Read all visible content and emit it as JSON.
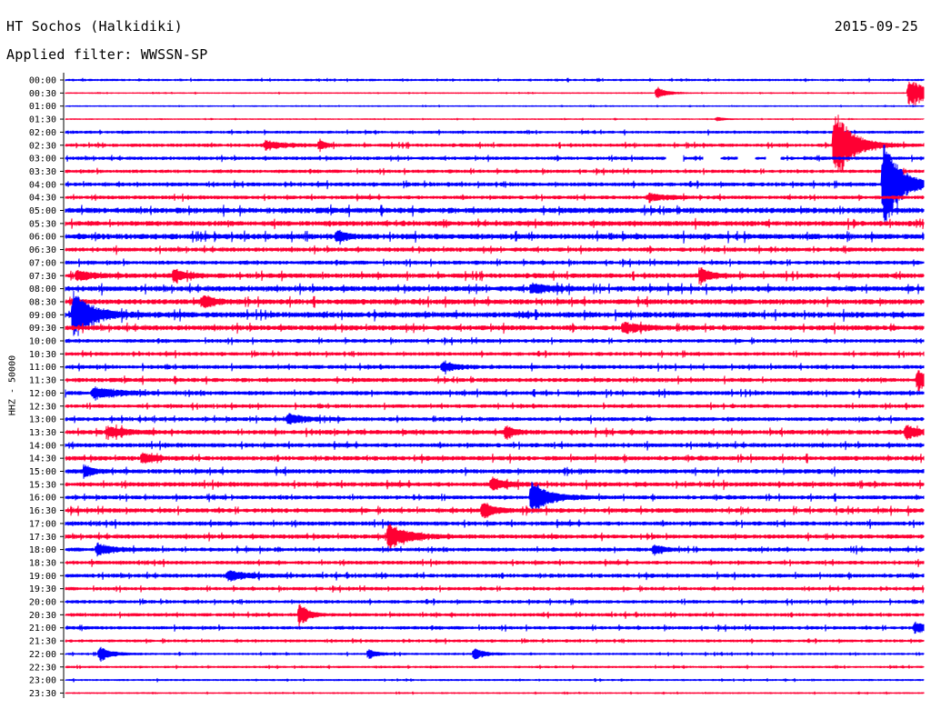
{
  "header": {
    "station": "HT Sochos (Halkidiki)",
    "date": "2015-09-25",
    "filter": "Applied filter: WWSSN-SP"
  },
  "chart_data": {
    "type": "line",
    "title": "HT Sochos (Halkidiki)",
    "ylabel": "HHZ - 50000",
    "row_labels": [
      "00:00",
      "00:30",
      "01:00",
      "01:30",
      "02:00",
      "02:30",
      "03:00",
      "03:30",
      "04:00",
      "04:30",
      "05:00",
      "05:30",
      "06:00",
      "06:30",
      "07:00",
      "07:30",
      "08:00",
      "08:30",
      "09:00",
      "09:30",
      "10:00",
      "10:30",
      "11:00",
      "11:30",
      "12:00",
      "12:30",
      "13:00",
      "13:30",
      "14:00",
      "14:30",
      "15:00",
      "15:30",
      "16:00",
      "16:30",
      "17:00",
      "17:30",
      "18:00",
      "18:30",
      "19:00",
      "19:30",
      "20:00",
      "20:30",
      "21:00",
      "21:30",
      "22:00",
      "22:30",
      "23:00",
      "23:30"
    ],
    "x_range_minutes": [
      0,
      30
    ],
    "colors": [
      "#0000ff",
      "#ff0033"
    ],
    "noise_level": [
      0.6,
      0.3,
      0.3,
      0.3,
      0.8,
      1.0,
      1.0,
      1.0,
      1.2,
      1.1,
      1.8,
      1.6,
      1.8,
      1.3,
      1.2,
      1.5,
      1.7,
      1.7,
      1.8,
      1.6,
      1.1,
      1.1,
      1.2,
      1.3,
      1.3,
      1.1,
      1.2,
      1.4,
      1.3,
      1.4,
      1.4,
      1.4,
      1.2,
      1.4,
      1.3,
      1.3,
      1.2,
      1.1,
      1.2,
      1.0,
      1.0,
      1.0,
      1.0,
      0.8,
      0.6,
      0.6,
      0.5,
      0.4
    ],
    "events": [
      {
        "row": 1,
        "time_min": 20.7,
        "amp": 7,
        "dur_min": 0.6
      },
      {
        "row": 1,
        "time_min": 29.5,
        "amp": 15,
        "dur_min": 1.5
      },
      {
        "row": 3,
        "time_min": 22.8,
        "amp": 2,
        "dur_min": 0.5
      },
      {
        "row": 5,
        "time_min": 7.0,
        "amp": 5,
        "dur_min": 1.2
      },
      {
        "row": 5,
        "time_min": 8.9,
        "amp": 6,
        "dur_min": 0.4
      },
      {
        "row": 5,
        "time_min": 26.9,
        "amp": 40,
        "dur_min": 1.2
      },
      {
        "row": 8,
        "time_min": 28.6,
        "amp": 50,
        "dur_min": 1.2
      },
      {
        "row": 9,
        "time_min": 20.4,
        "amp": 4,
        "dur_min": 1.2
      },
      {
        "row": 12,
        "time_min": 9.5,
        "amp": 6,
        "dur_min": 0.6
      },
      {
        "row": 15,
        "time_min": 0.4,
        "amp": 5,
        "dur_min": 1.2
      },
      {
        "row": 15,
        "time_min": 3.8,
        "amp": 7,
        "dur_min": 0.7
      },
      {
        "row": 15,
        "time_min": 22.2,
        "amp": 8,
        "dur_min": 0.7
      },
      {
        "row": 16,
        "time_min": 16.3,
        "amp": 5,
        "dur_min": 1.2
      },
      {
        "row": 17,
        "time_min": 4.8,
        "amp": 6,
        "dur_min": 0.8
      },
      {
        "row": 18,
        "time_min": 0.3,
        "amp": 25,
        "dur_min": 1.3
      },
      {
        "row": 19,
        "time_min": 19.5,
        "amp": 5,
        "dur_min": 1.2
      },
      {
        "row": 22,
        "time_min": 13.2,
        "amp": 5,
        "dur_min": 0.9
      },
      {
        "row": 23,
        "time_min": 29.8,
        "amp": 12,
        "dur_min": 0.5
      },
      {
        "row": 24,
        "time_min": 1.0,
        "amp": 6,
        "dur_min": 1.6
      },
      {
        "row": 26,
        "time_min": 7.8,
        "amp": 5,
        "dur_min": 1.2
      },
      {
        "row": 27,
        "time_min": 1.5,
        "amp": 6,
        "dur_min": 1.3
      },
      {
        "row": 27,
        "time_min": 15.4,
        "amp": 6,
        "dur_min": 0.7
      },
      {
        "row": 27,
        "time_min": 29.4,
        "amp": 8,
        "dur_min": 0.8
      },
      {
        "row": 29,
        "time_min": 2.7,
        "amp": 5,
        "dur_min": 0.8
      },
      {
        "row": 30,
        "time_min": 0.7,
        "amp": 6,
        "dur_min": 0.6
      },
      {
        "row": 31,
        "time_min": 14.9,
        "amp": 7,
        "dur_min": 1.0
      },
      {
        "row": 32,
        "time_min": 16.3,
        "amp": 16,
        "dur_min": 1.3
      },
      {
        "row": 33,
        "time_min": 14.6,
        "amp": 9,
        "dur_min": 0.7
      },
      {
        "row": 35,
        "time_min": 11.3,
        "amp": 14,
        "dur_min": 1.3
      },
      {
        "row": 36,
        "time_min": 1.1,
        "amp": 6,
        "dur_min": 1.2
      },
      {
        "row": 36,
        "time_min": 20.6,
        "amp": 5,
        "dur_min": 0.6
      },
      {
        "row": 38,
        "time_min": 5.7,
        "amp": 5,
        "dur_min": 1.2
      },
      {
        "row": 41,
        "time_min": 8.2,
        "amp": 12,
        "dur_min": 0.6
      },
      {
        "row": 42,
        "time_min": 29.7,
        "amp": 6,
        "dur_min": 1.0
      },
      {
        "row": 44,
        "time_min": 1.2,
        "amp": 8,
        "dur_min": 0.8
      },
      {
        "row": 44,
        "time_min": 10.6,
        "amp": 5,
        "dur_min": 0.6
      },
      {
        "row": 44,
        "time_min": 14.3,
        "amp": 6,
        "dur_min": 0.7
      }
    ],
    "gaps": [
      {
        "row": 6,
        "from_min": 21.0,
        "to_min": 21.6
      },
      {
        "row": 6,
        "from_min": 22.3,
        "to_min": 22.9
      },
      {
        "row": 6,
        "from_min": 23.5,
        "to_min": 24.1
      },
      {
        "row": 6,
        "from_min": 24.5,
        "to_min": 25.0
      }
    ]
  }
}
